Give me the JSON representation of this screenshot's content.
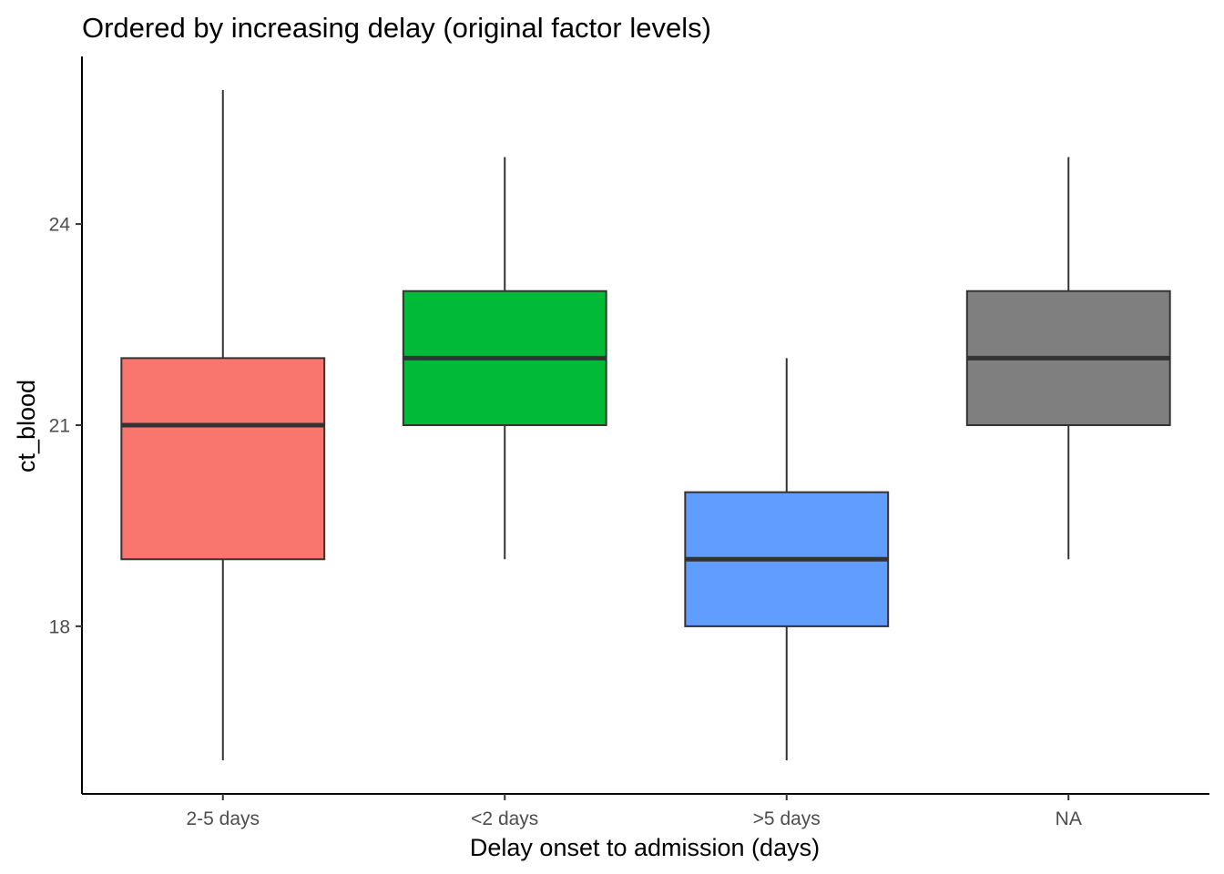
{
  "chart_data": {
    "type": "boxplot",
    "title": "Ordered by increasing delay (original factor levels)",
    "xlabel": "Delay onset to admission (days)",
    "ylabel": "ct_blood",
    "categories": [
      "2-5 days",
      "<2 days",
      ">5 days",
      "NA"
    ],
    "boxes": [
      {
        "category": "2-5 days",
        "whisker_low": 16,
        "q1": 19,
        "median": 21,
        "q3": 22,
        "whisker_high": 26,
        "color": "#F8766D"
      },
      {
        "category": "<2 days",
        "whisker_low": 19,
        "q1": 21,
        "median": 22,
        "q3": 23,
        "whisker_high": 25,
        "color": "#00BA38"
      },
      {
        "category": ">5 days",
        "whisker_low": 16,
        "q1": 18,
        "median": 19,
        "q3": 20,
        "whisker_high": 22,
        "color": "#619CFF"
      },
      {
        "category": "NA",
        "whisker_low": 19,
        "q1": 21,
        "median": 22,
        "q3": 23,
        "whisker_high": 25,
        "color": "#7F7F7F"
      }
    ],
    "ylim": [
      15.5,
      26.5
    ],
    "yticks": [
      18,
      21,
      24
    ],
    "ytick_labels": [
      "18",
      "21",
      "24"
    ],
    "grid": false,
    "legend": "none"
  }
}
